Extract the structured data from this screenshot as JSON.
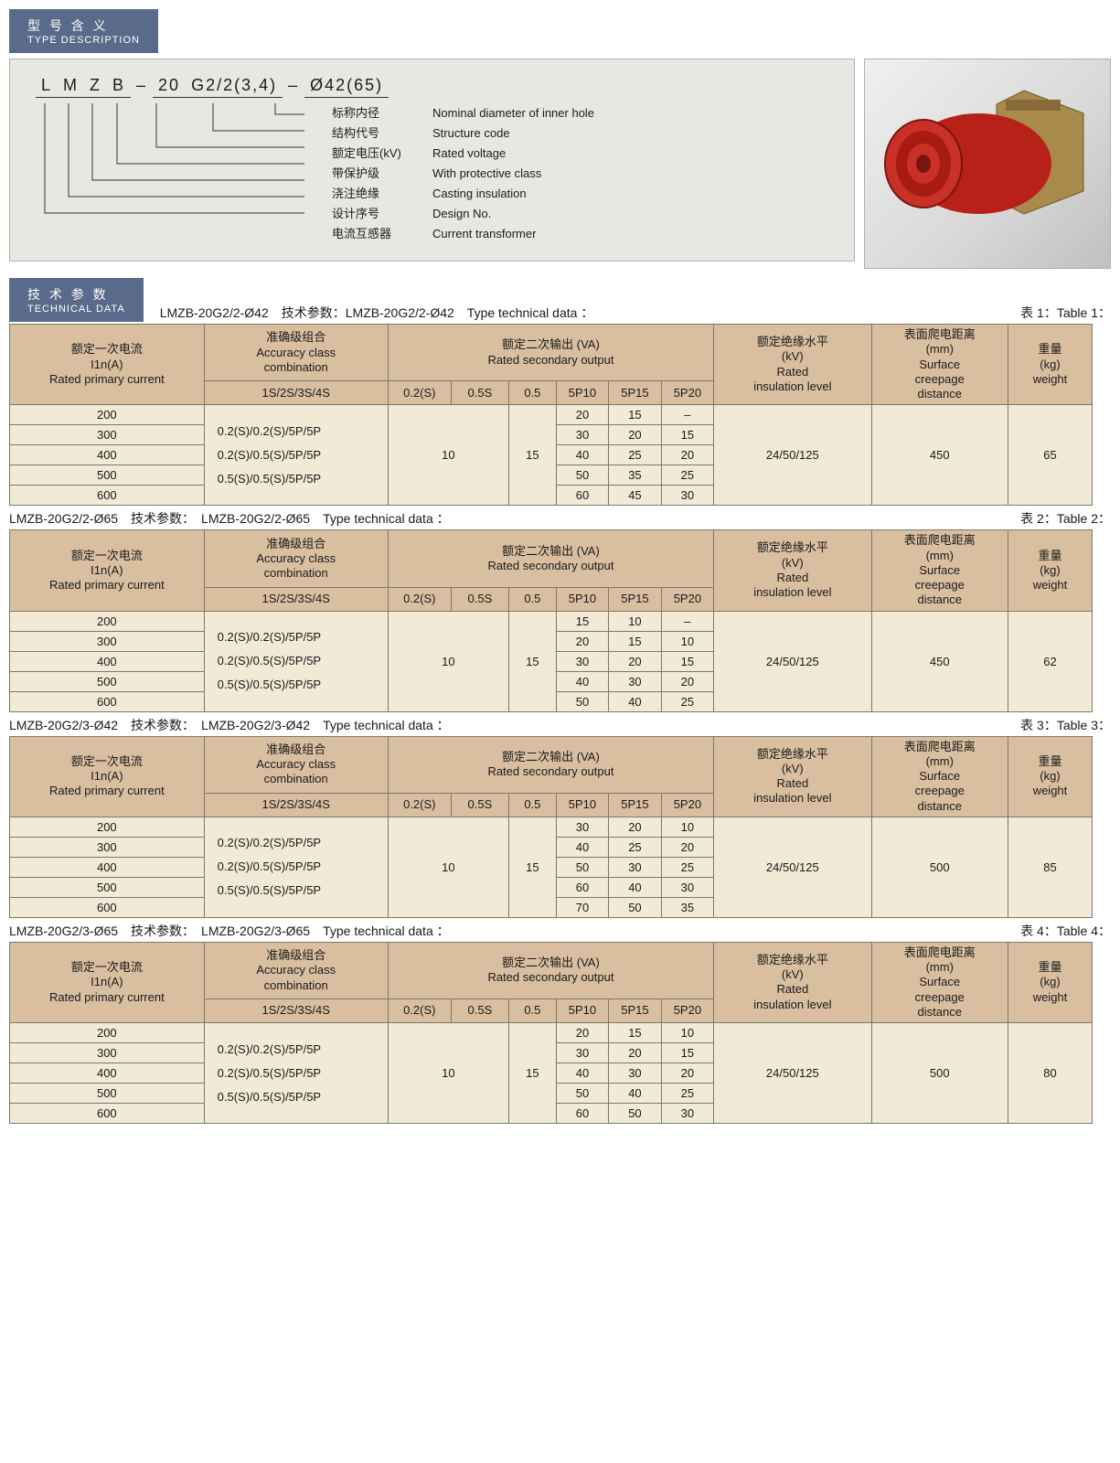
{
  "typeDescHeader": {
    "zh": "型 号 含 义",
    "en": "TYPE DESCRIPTION"
  },
  "techDataHeader": {
    "zh": "技 术 参 数",
    "en": "TECHNICAL DATA"
  },
  "code": [
    "L",
    "M",
    "Z",
    "B",
    "–",
    "20",
    "G2/2(3,4)",
    "–",
    "Ø42(65)"
  ],
  "descLines": [
    {
      "zh": "标称内径",
      "en": "Nominal diameter of inner hole"
    },
    {
      "zh": "结构代号",
      "en": "Structure code"
    },
    {
      "zh": "额定电压(kV)",
      "en": "Rated voltage"
    },
    {
      "zh": "带保护级",
      "en": "With protective class"
    },
    {
      "zh": "浇注绝缘",
      "en": "Casting insulation"
    },
    {
      "zh": "设计序号",
      "en": "Design No."
    },
    {
      "zh": "电流互感器",
      "en": "Current transformer"
    }
  ],
  "columns": {
    "col1": "额定一次电流\nI1n(A)\nRated primary current",
    "col2": "准确级组合\nAccuracy class\ncombination",
    "col2sub": "1S/2S/3S/4S",
    "col3": "额定二次输出 (VA)\nRated secondary output",
    "col3subs": [
      "0.2(S)",
      "0.5S",
      "0.5",
      "5P10",
      "5P15",
      "5P20"
    ],
    "col4": "额定绝缘水平\n(kV)\nRated\ninsulation level",
    "col5": "表面爬电距离\n(mm)\nSurface\ncreepage\ndistance",
    "col6": "重量\n(kg)\nweight"
  },
  "tables": [
    {
      "captionLeft": "LMZB-20G2/2-Ø42　技术参数：LMZB-20G2/2-Ø42　Type technical data ：",
      "captionRight": "表 1：Table 1：",
      "accuracy": [
        "0.2(S)/0.2(S)/5P/5P",
        "0.2(S)/0.5(S)/5P/5P",
        "0.5(S)/0.5(S)/5P/5P"
      ],
      "left02s": "10",
      "left05s": "",
      "left05": "15",
      "insul": "24/50/125",
      "creep": "450",
      "weight": "65",
      "rows": [
        {
          "i": "200",
          "p10": "20",
          "p15": "15",
          "p20": "–"
        },
        {
          "i": "300",
          "p10": "30",
          "p15": "20",
          "p20": "15"
        },
        {
          "i": "400",
          "p10": "40",
          "p15": "25",
          "p20": "20"
        },
        {
          "i": "500",
          "p10": "50",
          "p15": "35",
          "p20": "25"
        },
        {
          "i": "600",
          "p10": "60",
          "p15": "45",
          "p20": "30"
        }
      ]
    },
    {
      "captionLeft": "LMZB-20G2/2-Ø65　技术参数：　LMZB-20G2/2-Ø65　Type technical data ：",
      "captionRight": "表 2：Table 2：",
      "accuracy": [
        "0.2(S)/0.2(S)/5P/5P",
        "0.2(S)/0.5(S)/5P/5P",
        "0.5(S)/0.5(S)/5P/5P"
      ],
      "left02s": "10",
      "left05s": "",
      "left05": "15",
      "insul": "24/50/125",
      "creep": "450",
      "weight": "62",
      "rows": [
        {
          "i": "200",
          "p10": "15",
          "p15": "10",
          "p20": "–"
        },
        {
          "i": "300",
          "p10": "20",
          "p15": "15",
          "p20": "10"
        },
        {
          "i": "400",
          "p10": "30",
          "p15": "20",
          "p20": "15"
        },
        {
          "i": "500",
          "p10": "40",
          "p15": "30",
          "p20": "20"
        },
        {
          "i": "600",
          "p10": "50",
          "p15": "40",
          "p20": "25"
        }
      ]
    },
    {
      "captionLeft": "LMZB-20G2/3-Ø42　技术参数：　LMZB-20G2/3-Ø42　Type technical data ：",
      "captionRight": "表 3：Table 3：",
      "accuracy": [
        "0.2(S)/0.2(S)/5P/5P",
        "0.2(S)/0.5(S)/5P/5P",
        "0.5(S)/0.5(S)/5P/5P"
      ],
      "left02s": "10",
      "left05s": "",
      "left05": "15",
      "insul": "24/50/125",
      "creep": "500",
      "weight": "85",
      "rows": [
        {
          "i": "200",
          "p10": "30",
          "p15": "20",
          "p20": "10"
        },
        {
          "i": "300",
          "p10": "40",
          "p15": "25",
          "p20": "20"
        },
        {
          "i": "400",
          "p10": "50",
          "p15": "30",
          "p20": "25"
        },
        {
          "i": "500",
          "p10": "60",
          "p15": "40",
          "p20": "30"
        },
        {
          "i": "600",
          "p10": "70",
          "p15": "50",
          "p20": "35"
        }
      ]
    },
    {
      "captionLeft": "LMZB-20G2/3-Ø65　技术参数：　LMZB-20G2/3-Ø65　Type technical data ：",
      "captionRight": "表 4：Table 4：",
      "accuracy": [
        "0.2(S)/0.2(S)/5P/5P",
        "0.2(S)/0.5(S)/5P/5P",
        "0.5(S)/0.5(S)/5P/5P"
      ],
      "left02s": "10",
      "left05s": "",
      "left05": "15",
      "insul": "24/50/125",
      "creep": "500",
      "weight": "80",
      "rows": [
        {
          "i": "200",
          "p10": "20",
          "p15": "15",
          "p20": "10"
        },
        {
          "i": "300",
          "p10": "30",
          "p15": "20",
          "p20": "15"
        },
        {
          "i": "400",
          "p10": "40",
          "p15": "30",
          "p20": "20"
        },
        {
          "i": "500",
          "p10": "50",
          "p15": "40",
          "p20": "25"
        },
        {
          "i": "600",
          "p10": "60",
          "p15": "50",
          "p20": "30"
        }
      ]
    }
  ],
  "colors": {
    "headerTab": "#5a6a8a",
    "thBg": "#d9bfa0",
    "tdBg": "#f2e9d6",
    "border": "#7a7a6a",
    "descBox": "#e8e8e2"
  }
}
